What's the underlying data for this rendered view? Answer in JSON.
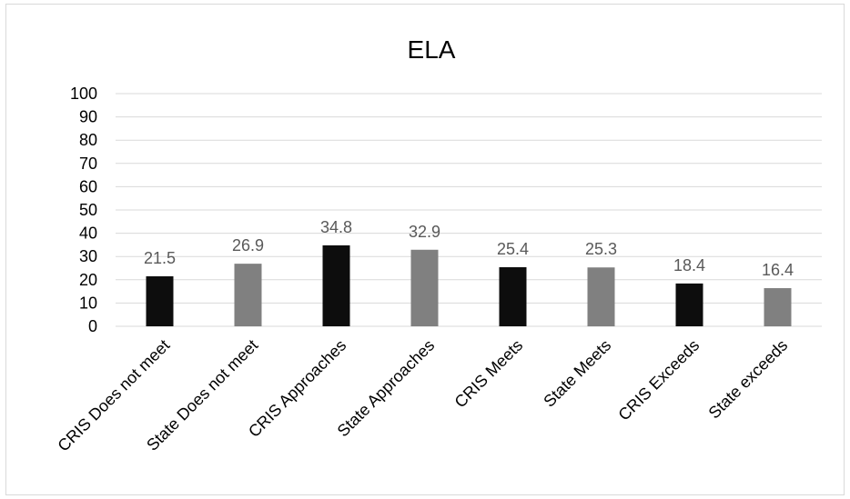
{
  "chart_data": {
    "type": "bar",
    "title": "ELA",
    "categories": [
      "CRIS Does not meet",
      "State Does not meet",
      "CRIS Approaches",
      "State Approaches",
      "CRIS Meets",
      "State Meets",
      "CRIS Exceeds",
      "State exceeds"
    ],
    "values": [
      21.5,
      26.9,
      34.8,
      32.9,
      25.4,
      25.3,
      18.4,
      16.4
    ],
    "data_labels": [
      "21.5",
      "26.9",
      "34.8",
      "32.9",
      "25.4",
      "25.3",
      "18.4",
      "16.4"
    ],
    "bar_colors": [
      "#0d0d0d",
      "#808080",
      "#0d0d0d",
      "#808080",
      "#0d0d0d",
      "#808080",
      "#0d0d0d",
      "#808080"
    ],
    "ylim": [
      0,
      100
    ],
    "yticks": [
      "0",
      "10",
      "20",
      "30",
      "40",
      "50",
      "60",
      "70",
      "80",
      "90",
      "100"
    ],
    "grid": true,
    "legend": "none",
    "xlabel": "",
    "ylabel": ""
  }
}
